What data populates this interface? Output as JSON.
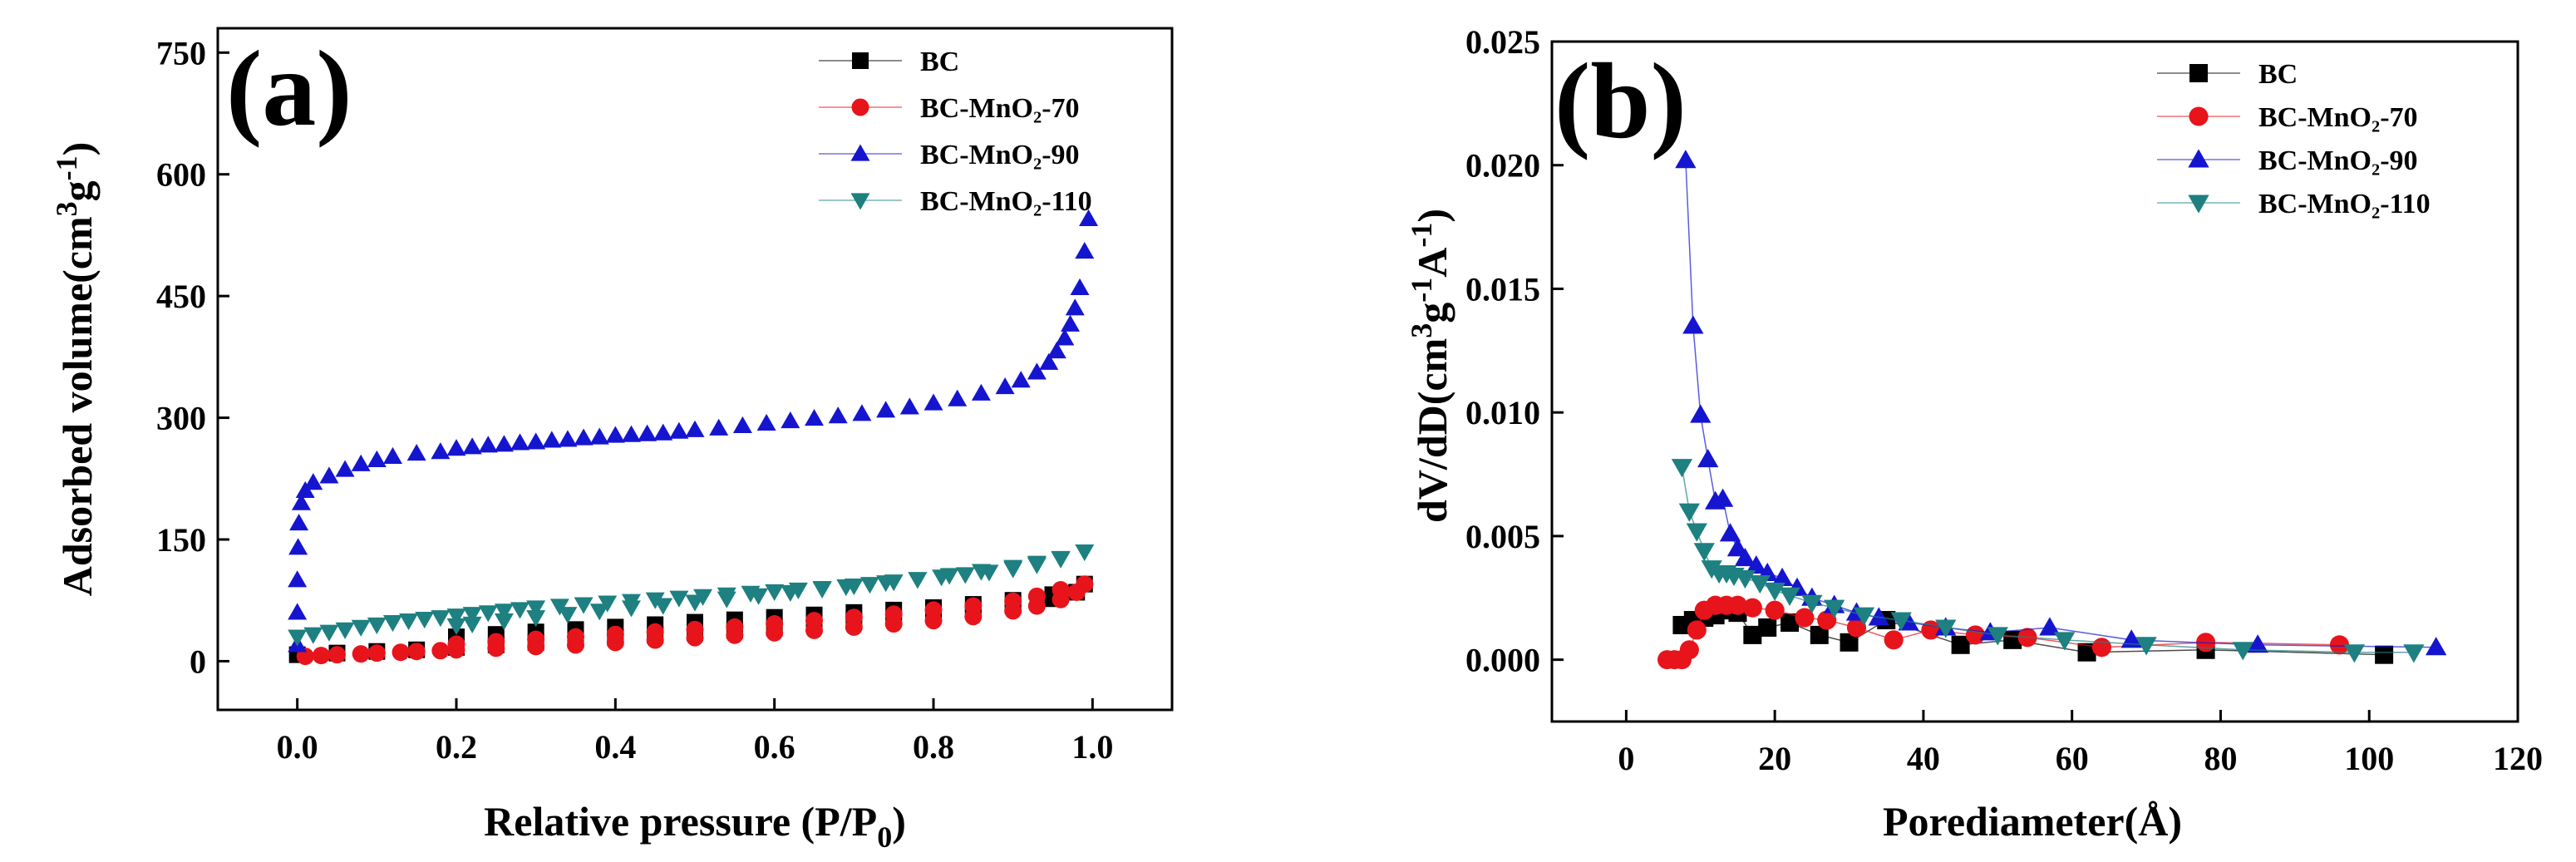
{
  "chart_data": [
    {
      "type": "scatter",
      "panel_label": "(a)",
      "title": "",
      "xlabel": "Relative pressure (P/P",
      "xlabel_sub": "0",
      "xlabel_end": ")",
      "ylabel": "Adsorbed volume(cm",
      "ylabel_sup1": "3",
      "ylabel_mid": "g",
      "ylabel_sup2": "-1",
      "ylabel_end": ")",
      "xlim": [
        -0.1,
        1.1
      ],
      "ylim": [
        -60,
        780
      ],
      "xticks": [
        0.0,
        0.2,
        0.4,
        0.6,
        0.8,
        1.0
      ],
      "xtick_labels": [
        "0.0",
        "0.2",
        "0.4",
        "0.6",
        "0.8",
        "1.0"
      ],
      "yticks": [
        0,
        150,
        300,
        450,
        600,
        750
      ],
      "ytick_labels": [
        "0",
        "150",
        "300",
        "450",
        "600",
        "750"
      ],
      "legend_position": "top-right",
      "series": [
        {
          "name": "BC",
          "marker": "square",
          "color": "#000000",
          "x": [
            0.0,
            0.05,
            0.1,
            0.15,
            0.2,
            0.25,
            0.3,
            0.35,
            0.4,
            0.45,
            0.5,
            0.55,
            0.6,
            0.65,
            0.7,
            0.75,
            0.8,
            0.85,
            0.9,
            0.95,
            0.98,
            0.99,
            0.95,
            0.9,
            0.85,
            0.8,
            0.75,
            0.7,
            0.65,
            0.6,
            0.55,
            0.5,
            0.45,
            0.4,
            0.35,
            0.3,
            0.25,
            0.2
          ],
          "y": [
            8,
            10,
            12,
            14,
            17,
            20,
            23,
            26,
            29,
            32,
            35,
            38,
            41,
            45,
            49,
            53,
            58,
            63,
            69,
            77,
            85,
            95,
            82,
            75,
            70,
            66,
            63,
            60,
            57,
            54,
            51,
            48,
            45,
            42,
            39,
            36,
            33,
            30
          ]
        },
        {
          "name": "BC-MnO₂-70",
          "marker": "circle",
          "color": "#e8141b",
          "x": [
            0.01,
            0.03,
            0.05,
            0.08,
            0.1,
            0.13,
            0.15,
            0.18,
            0.2,
            0.25,
            0.3,
            0.35,
            0.4,
            0.45,
            0.5,
            0.55,
            0.6,
            0.65,
            0.7,
            0.75,
            0.8,
            0.85,
            0.9,
            0.93,
            0.96,
            0.98,
            0.99,
            0.96,
            0.93,
            0.9,
            0.85,
            0.8,
            0.75,
            0.7,
            0.65,
            0.6,
            0.55,
            0.5,
            0.45,
            0.4,
            0.35,
            0.3,
            0.25,
            0.2
          ],
          "y": [
            6,
            7,
            8,
            9,
            10,
            11,
            12,
            13,
            14,
            16,
            18,
            20,
            23,
            26,
            29,
            32,
            35,
            38,
            42,
            46,
            50,
            55,
            62,
            68,
            76,
            85,
            95,
            88,
            80,
            74,
            68,
            63,
            58,
            54,
            50,
            46,
            42,
            39,
            36,
            33,
            30,
            27,
            24,
            21
          ]
        },
        {
          "name": "BC-MnO₂-90",
          "marker": "triangle-up",
          "color": "#1515d0",
          "x": [
            0.0,
            0.0,
            0.0,
            0.001,
            0.002,
            0.005,
            0.01,
            0.02,
            0.04,
            0.06,
            0.08,
            0.1,
            0.12,
            0.15,
            0.18,
            0.2,
            0.22,
            0.24,
            0.26,
            0.28,
            0.3,
            0.32,
            0.34,
            0.36,
            0.38,
            0.4,
            0.42,
            0.44,
            0.46,
            0.48,
            0.5,
            0.53,
            0.56,
            0.59,
            0.62,
            0.65,
            0.68,
            0.71,
            0.74,
            0.77,
            0.8,
            0.83,
            0.86,
            0.89,
            0.91,
            0.93,
            0.945,
            0.955,
            0.965,
            0.972,
            0.978,
            0.984,
            0.99,
            0.995
          ],
          "y": [
            20,
            60,
            100,
            140,
            170,
            195,
            210,
            220,
            228,
            236,
            243,
            248,
            252,
            256,
            258,
            262,
            264,
            266,
            267,
            269,
            270,
            272,
            273,
            275,
            276,
            278,
            279,
            280,
            281,
            283,
            285,
            287,
            290,
            293,
            296,
            299,
            302,
            305,
            309,
            313,
            318,
            323,
            330,
            338,
            346,
            356,
            368,
            382,
            398,
            415,
            435,
            460,
            505,
            545
          ]
        },
        {
          "name": "BC-MnO₂-110",
          "marker": "triangle-down",
          "color": "#1e8080",
          "x": [
            0.0,
            0.02,
            0.04,
            0.06,
            0.08,
            0.1,
            0.12,
            0.14,
            0.16,
            0.18,
            0.2,
            0.22,
            0.24,
            0.26,
            0.28,
            0.3,
            0.33,
            0.36,
            0.39,
            0.42,
            0.45,
            0.48,
            0.51,
            0.54,
            0.57,
            0.6,
            0.63,
            0.66,
            0.69,
            0.72,
            0.75,
            0.78,
            0.81,
            0.84,
            0.87,
            0.9,
            0.93,
            0.96,
            0.99,
            0.96,
            0.93,
            0.9,
            0.86,
            0.82,
            0.78,
            0.74,
            0.7,
            0.66,
            0.62,
            0.58,
            0.54,
            0.5,
            0.46,
            0.42,
            0.38,
            0.34,
            0.3,
            0.26,
            0.22,
            0.2
          ],
          "y": [
            30,
            33,
            36,
            39,
            42,
            45,
            48,
            50,
            52,
            54,
            56,
            58,
            60,
            62,
            64,
            66,
            68,
            70,
            72,
            74,
            76,
            78,
            80,
            82,
            84,
            86,
            88,
            90,
            92,
            95,
            98,
            101,
            104,
            107,
            110,
            114,
            119,
            126,
            135,
            127,
            121,
            116,
            111,
            106,
            101,
            97,
            93,
            89,
            85,
            81,
            77,
            73,
            69,
            66,
            62,
            58,
            54,
            50,
            46,
            44
          ]
        }
      ]
    },
    {
      "type": "line",
      "panel_label": "(b)",
      "title": "",
      "xlabel": "Porediameter(Å)",
      "ylabel": "dV/dD(cm",
      "ylabel_sup1": "3",
      "ylabel_mid": "g",
      "ylabel_sup2": "-1",
      "ylabel_mid2": "A",
      "ylabel_sup3": "-1",
      "ylabel_end": ")",
      "xlim": [
        -10,
        120
      ],
      "ylim": [
        -0.0025,
        0.025
      ],
      "xticks": [
        0,
        20,
        40,
        60,
        80,
        100,
        120
      ],
      "xtick_labels": [
        "0",
        "20",
        "40",
        "60",
        "80",
        "100",
        "120"
      ],
      "yticks": [
        0.0,
        0.005,
        0.01,
        0.015,
        0.02,
        0.025
      ],
      "ytick_labels": [
        "0.000",
        "0.005",
        "0.010",
        "0.015",
        "0.020",
        "0.025"
      ],
      "legend_position": "top-right",
      "series": [
        {
          "name": "BC",
          "marker": "square",
          "color": "#000000",
          "x": [
            7.5,
            9,
            10.5,
            12,
            13.5,
            15,
            17,
            19,
            22,
            26,
            30,
            35,
            45,
            52,
            62,
            78,
            102
          ],
          "y": [
            0.0014,
            0.0016,
            0.0017,
            0.0018,
            0.002,
            0.0019,
            0.001,
            0.0013,
            0.0015,
            0.001,
            0.0007,
            0.0016,
            0.0006,
            0.0008,
            0.0003,
            0.0004,
            0.0002
          ]
        },
        {
          "name": "BC-MnO₂-70",
          "marker": "circle",
          "color": "#e8141b",
          "x": [
            5.5,
            6.5,
            7.5,
            8.5,
            9.5,
            10.5,
            12,
            13.5,
            15,
            17,
            20,
            24,
            27,
            31,
            36,
            41,
            47,
            54,
            64,
            78,
            96
          ],
          "y": [
            0.0,
            0.0,
            0.0,
            0.0004,
            0.0012,
            0.002,
            0.0022,
            0.0022,
            0.0022,
            0.0021,
            0.002,
            0.0017,
            0.0016,
            0.0013,
            0.0008,
            0.0012,
            0.001,
            0.0009,
            0.0005,
            0.0007,
            0.0006
          ]
        },
        {
          "name": "BC-MnO₂-90",
          "marker": "triangle-up",
          "color": "#1515d0",
          "x": [
            8,
            9,
            10,
            11,
            12,
            13,
            14,
            15,
            16,
            17.5,
            19,
            21,
            23,
            25,
            28,
            31,
            34,
            38,
            43,
            49,
            57,
            68,
            85,
            109
          ],
          "y": [
            0.0202,
            0.0135,
            0.0099,
            0.0081,
            0.0064,
            0.0065,
            0.0051,
            0.0045,
            0.0041,
            0.0038,
            0.0035,
            0.0033,
            0.0029,
            0.0025,
            0.0022,
            0.0019,
            0.0017,
            0.0015,
            0.0013,
            0.0011,
            0.0013,
            0.0008,
            0.0006,
            0.0005
          ]
        },
        {
          "name": "BC-MnO₂-110",
          "marker": "triangle-down",
          "color": "#1e8080",
          "x": [
            7.5,
            8.5,
            9.5,
            10.5,
            11.5,
            12.5,
            13.5,
            14.5,
            16,
            18,
            20,
            22,
            25,
            28,
            32,
            37,
            43,
            50,
            59,
            70,
            83,
            98,
            106
          ],
          "y": [
            0.0078,
            0.006,
            0.0052,
            0.0044,
            0.0037,
            0.0035,
            0.0035,
            0.0034,
            0.0033,
            0.0031,
            0.0028,
            0.0026,
            0.0023,
            0.0021,
            0.0018,
            0.0016,
            0.0013,
            0.001,
            0.0008,
            0.0006,
            0.0004,
            0.0003,
            0.0003
          ]
        }
      ]
    }
  ]
}
